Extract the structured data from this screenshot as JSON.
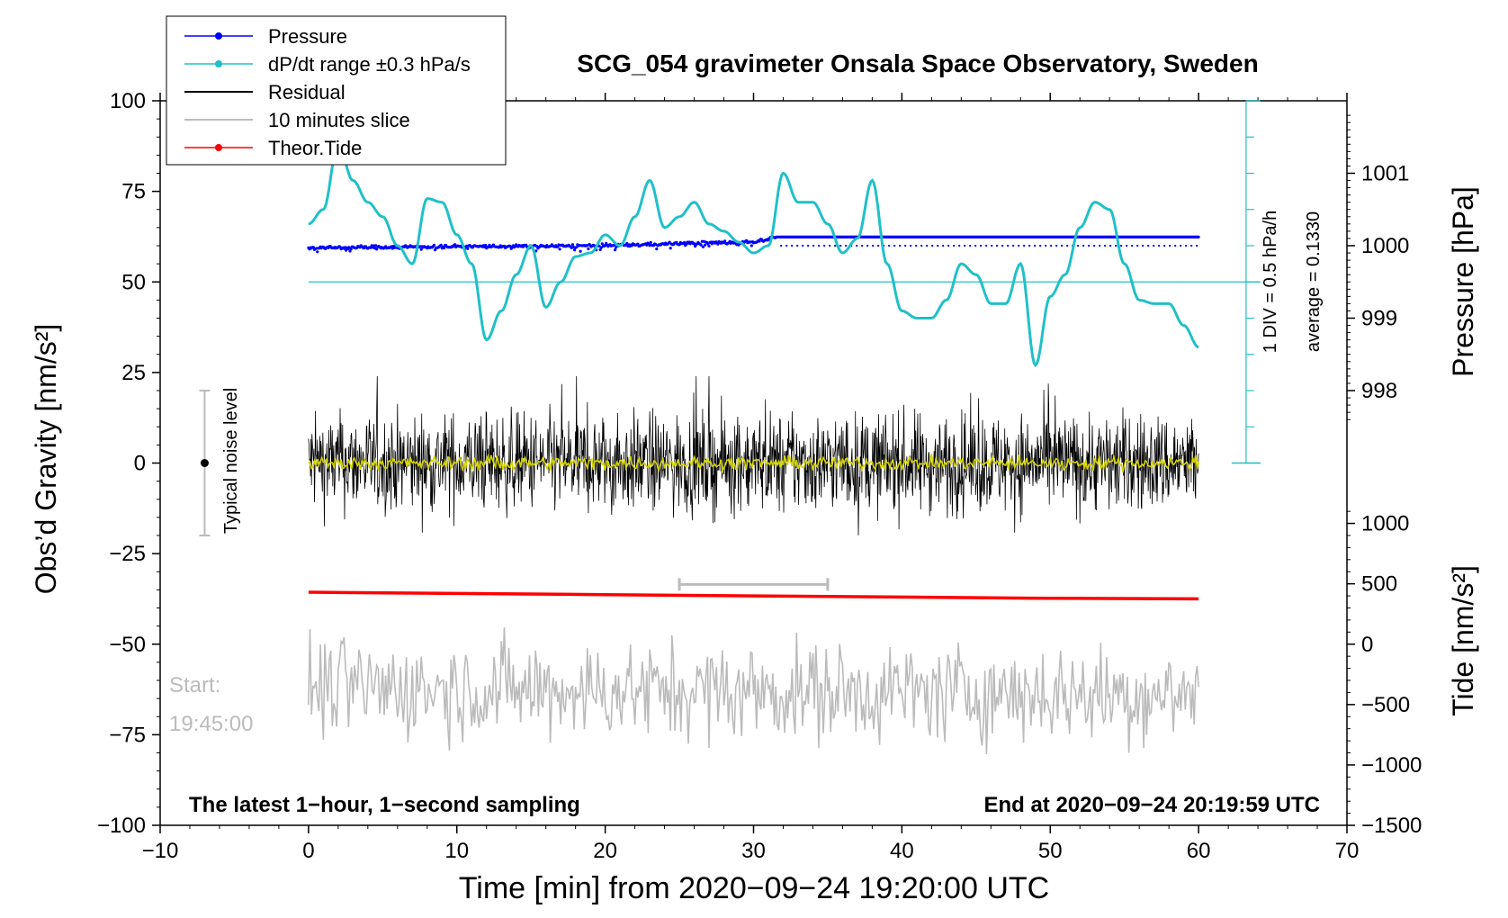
{
  "chart_data": {
    "type": "line",
    "title": "SCG_054 gravimeter Onsala Space Observatory, Sweden",
    "xlabel": "Time [min] from 2020−09−24 19:20:00 UTC",
    "ylabel_left": "Obs’d Gravity [nm/s²]",
    "ylabel_right_top": "Pressure [hPa]",
    "ylabel_right_bottom": "Tide [nm/s²]",
    "xlim": [
      -10,
      70
    ],
    "ylim": [
      -100,
      100
    ],
    "x_ticks": [
      "−10",
      "0",
      "10",
      "20",
      "30",
      "40",
      "50",
      "60",
      "70"
    ],
    "y_ticks": [
      "−100",
      "−75",
      "−50",
      "−25",
      "0",
      "25",
      "50",
      "75",
      "100"
    ],
    "pressure_axis": {
      "ticks": [
        "1001",
        "1000",
        "999",
        "998"
      ],
      "values": [
        1001,
        1000,
        999,
        998
      ]
    },
    "tide_axis": {
      "ticks": [
        "1000",
        "500",
        "0",
        "−500",
        "−1000",
        "−1500"
      ],
      "values": [
        1000,
        500,
        0,
        -500,
        -1000,
        -1500
      ]
    },
    "legend": {
      "placement": "top-left",
      "entries": [
        {
          "label": "Pressure",
          "color": "#0000ff"
        },
        {
          "label": "dP/dt range ±0.3 hPa/s",
          "color": "#20c0c8"
        },
        {
          "label": "Residual",
          "color": "#000000"
        },
        {
          "label": "10 minutes slice",
          "color": "#bbbbbb"
        },
        {
          "label": "Theor.Tide",
          "color": "#ff0000"
        }
      ]
    },
    "annotations": {
      "noise_label": "Typical noise level",
      "noise_range": [
        -20,
        20
      ],
      "div_label": "1 DIV = 0.5 hPa/h",
      "average_label": "average = 0.1330",
      "start_label": "Start:",
      "start_time": "19:45:00",
      "footer_left": "The latest 1−hour, 1−second sampling",
      "footer_right": "End at 2020−09−24 20:19:59 UTC",
      "slice_range": [
        25,
        35
      ]
    },
    "series": [
      {
        "name": "Pressure",
        "unit": "hPa",
        "x": [
          0,
          5,
          10,
          15,
          20,
          25,
          30,
          31.5,
          60
        ],
        "values": [
          999.97,
          999.98,
          999.99,
          999.99,
          1000.0,
          1000.03,
          1000.05,
          1000.12,
          1000.12
        ],
        "color": "#0000ff"
      },
      {
        "name": "dP/dt range ±0.3 hPa/s",
        "unit": "gravity-axis",
        "x": [
          0,
          1,
          2,
          3,
          4,
          5,
          6,
          7,
          8,
          9,
          10,
          11,
          12,
          13,
          14,
          15,
          16,
          17,
          18,
          19,
          20,
          21,
          22,
          23,
          24,
          25,
          26,
          27,
          28,
          29,
          30,
          31,
          32,
          33,
          34,
          35,
          36,
          37,
          38,
          39,
          40,
          41,
          42,
          43,
          44,
          45,
          46,
          47,
          48,
          49,
          50,
          51,
          52,
          53,
          54,
          55,
          56,
          57,
          58,
          59,
          60
        ],
        "values": [
          66,
          70,
          88,
          78,
          72,
          68,
          60,
          55,
          73,
          72,
          63,
          55,
          34,
          42,
          52,
          60,
          43,
          50,
          57,
          58,
          63,
          60,
          68,
          78,
          65,
          68,
          72,
          66,
          64,
          61,
          58,
          60,
          80,
          72,
          72,
          66,
          58,
          62,
          78,
          55,
          42,
          40,
          40,
          45,
          55,
          52,
          44,
          44,
          55,
          27,
          46,
          52,
          65,
          72,
          70,
          55,
          45,
          44,
          44,
          38,
          32
        ],
        "color": "#20c0c8"
      },
      {
        "name": "Residual",
        "unit": "nm/s²",
        "x": [
          0,
          60
        ],
        "values": [
          0,
          0
        ],
        "amplitude": 12,
        "color": "#000000"
      },
      {
        "name": "10 minutes slice",
        "unit": "gravity-axis",
        "x": [
          0,
          60
        ],
        "values": [
          -62,
          -64
        ],
        "amplitude": 9,
        "color": "#bbbbbb"
      },
      {
        "name": "Theor.Tide",
        "unit": "nm/s²",
        "x": [
          0,
          10,
          20,
          30,
          40,
          50,
          60
        ],
        "values": [
          430,
          420,
          410,
          400,
          390,
          380,
          375
        ],
        "color": "#ff0000"
      }
    ]
  }
}
